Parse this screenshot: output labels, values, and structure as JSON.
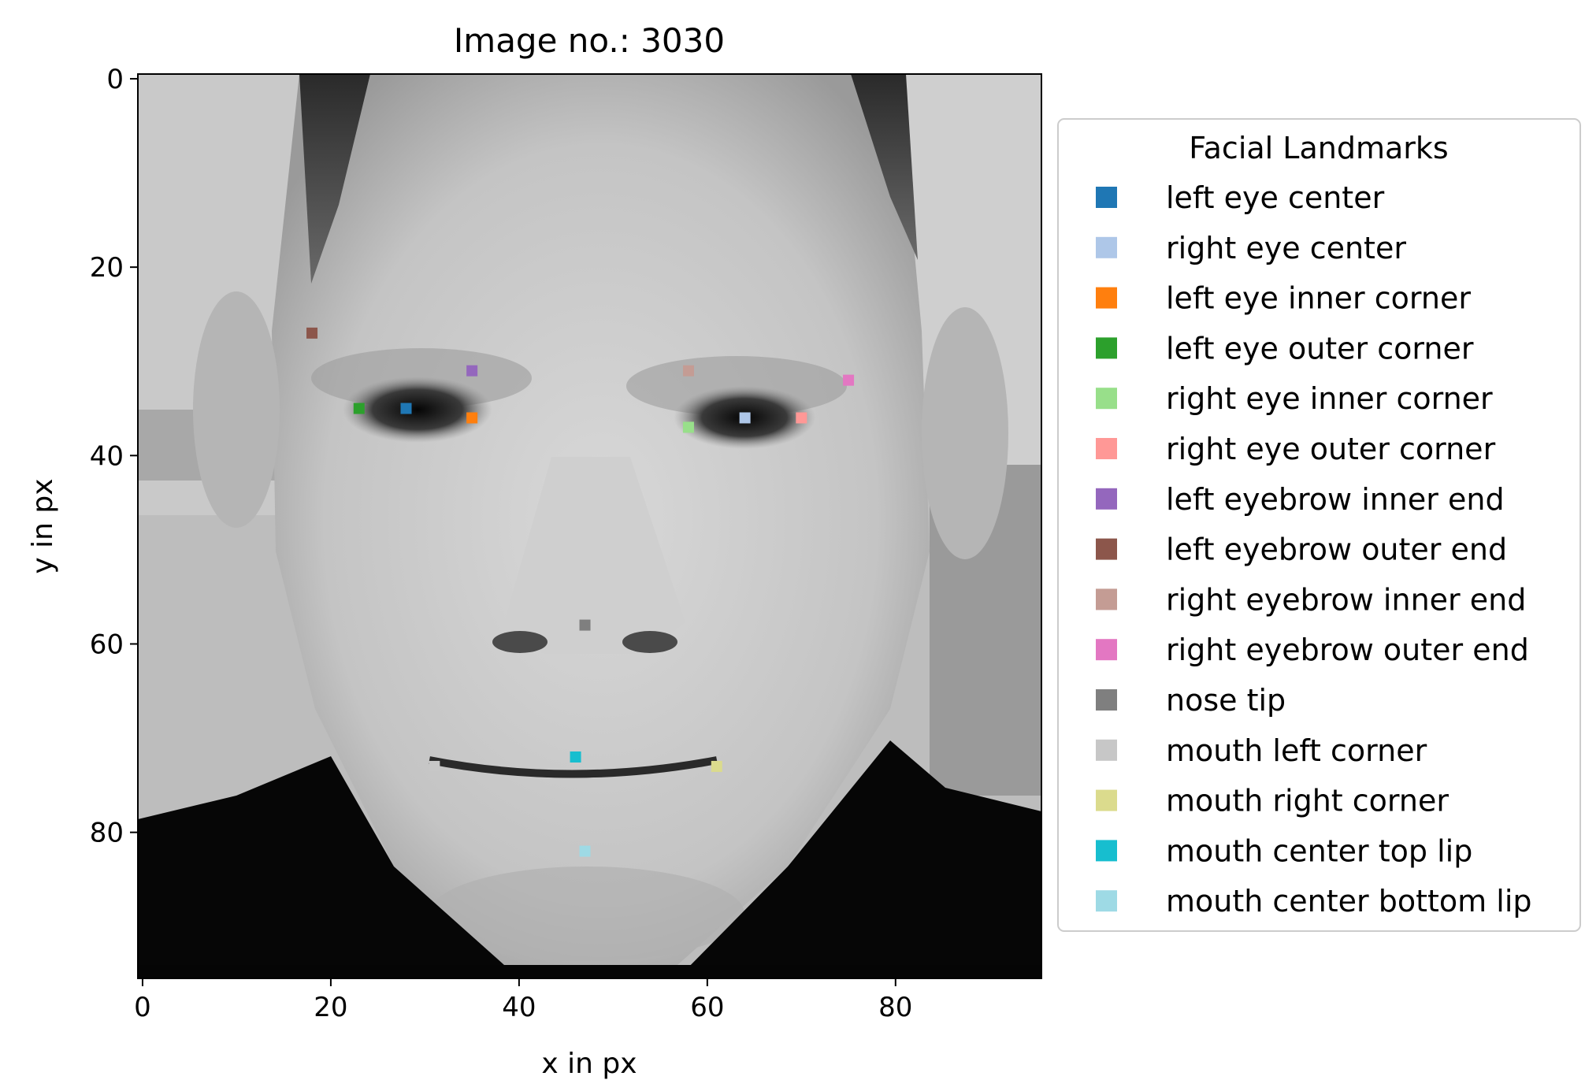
{
  "chart_data": {
    "type": "scatter",
    "title": "Image no.: 3030",
    "xlabel": "x in px",
    "ylabel": "y in px",
    "xlim": [
      -0.5,
      95.5
    ],
    "ylim": [
      95.5,
      -0.5
    ],
    "xticks": [
      0,
      20,
      40,
      60,
      80
    ],
    "yticks": [
      0,
      20,
      40,
      60,
      80
    ],
    "grid": false,
    "background_image": "grayscale face photograph (96x96 px)",
    "legend": {
      "title": "Facial Landmarks",
      "placement": "right-outside"
    },
    "series": [
      {
        "name": "left eye center",
        "color": "#1f77b4",
        "x": 28,
        "y": 35
      },
      {
        "name": "right eye center",
        "color": "#aec7e8",
        "x": 64,
        "y": 36
      },
      {
        "name": "left eye inner corner",
        "color": "#ff7f0e",
        "x": 35,
        "y": 36
      },
      {
        "name": "left eye outer corner",
        "color": "#2ca02c",
        "x": 23,
        "y": 35
      },
      {
        "name": "right eye inner corner",
        "color": "#98df8a",
        "x": 58,
        "y": 37
      },
      {
        "name": "right eye outer corner",
        "color": "#ff9896",
        "x": 70,
        "y": 36
      },
      {
        "name": "left eyebrow inner end",
        "color": "#9467bd",
        "x": 35,
        "y": 31
      },
      {
        "name": "left eyebrow outer end",
        "color": "#8c564b",
        "x": 18,
        "y": 27
      },
      {
        "name": "right eyebrow inner end",
        "color": "#c49c94",
        "x": 58,
        "y": 31
      },
      {
        "name": "right eyebrow outer end",
        "color": "#e377c2",
        "x": 75,
        "y": 32
      },
      {
        "name": "nose tip",
        "color": "#7f7f7f",
        "x": 47,
        "y": 58
      },
      {
        "name": "mouth left corner",
        "color": "#c7c7c7",
        "x": 31,
        "y": 73
      },
      {
        "name": "mouth right corner",
        "color": "#dbdb8d",
        "x": 61,
        "y": 73
      },
      {
        "name": "mouth center top lip",
        "color": "#17becf",
        "x": 46,
        "y": 72
      },
      {
        "name": "mouth center bottom lip",
        "color": "#9edae5",
        "x": 47,
        "y": 82
      }
    ]
  }
}
